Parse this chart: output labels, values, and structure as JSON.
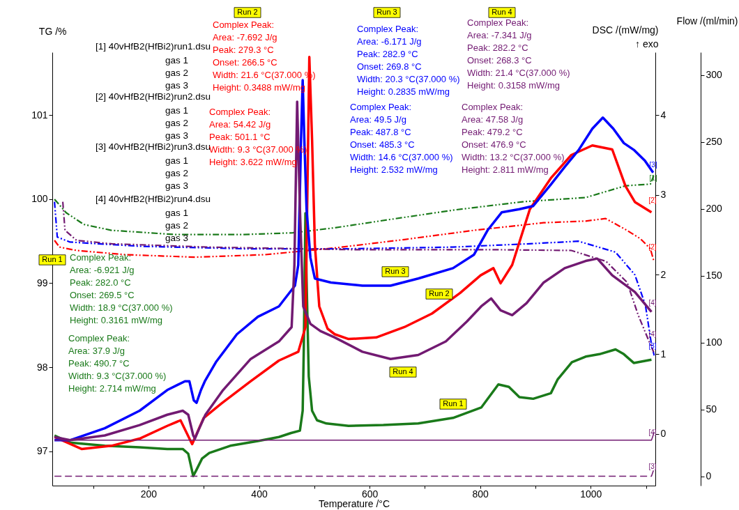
{
  "chart_data": {
    "type": "line",
    "xlabel": "Temperature /°C",
    "ylabel": "TG /%",
    "y2label": "DSC /(mW/mg)\n↑ exo",
    "y3label": "Flow /(ml/min)",
    "xlim": [
      26,
      1117
    ],
    "xticks": [
      {
        "value": 100,
        "label": null
      },
      200,
      {
        "value": 300,
        "label": null
      },
      400,
      {
        "value": 500,
        "label": null
      },
      600,
      {
        "value": 700,
        "label": null
      },
      800,
      {
        "value": 900,
        "label": null
      },
      1000,
      {
        "value": 1100,
        "label": null
      }
    ],
    "ylim": [
      96.59,
      101.75
    ],
    "yticks": [
      97,
      98,
      99,
      100,
      101
    ],
    "y2lim": [
      -0.65,
      4.79
    ],
    "y2ticks": [
      0,
      1,
      2,
      3,
      4
    ],
    "y3lim": [
      -7,
      317
    ],
    "y3ticks": [
      0,
      50,
      100,
      150,
      200,
      250,
      300
    ],
    "grid": false,
    "series": [
      {
        "axis": "y2",
        "color": "#1a7a1a",
        "line_style": "solid",
        "x": [
          30,
          58,
          121,
          184,
          234,
          262,
          272,
          281,
          287,
          297,
          310,
          348,
          398,
          436,
          458,
          474,
          479,
          481,
          484,
          486,
          490,
          496,
          505,
          522,
          562,
          625,
          688,
          751,
          802,
          833,
          852,
          871,
          896,
          928,
          940,
          966,
          991,
          1016,
          1045,
          1060,
          1078,
          1110
        ],
        "values": [
          -0.02,
          -0.11,
          -0.15,
          -0.17,
          -0.19,
          -0.19,
          -0.25,
          -0.53,
          -0.45,
          -0.31,
          -0.24,
          -0.15,
          -0.09,
          -0.04,
          0.01,
          0.04,
          0.29,
          1.07,
          2.77,
          1.95,
          0.72,
          0.29,
          0.17,
          0.13,
          0.1,
          0.11,
          0.13,
          0.2,
          0.33,
          0.62,
          0.59,
          0.46,
          0.44,
          0.51,
          0.68,
          0.9,
          0.97,
          1.0,
          1.06,
          1.0,
          0.89,
          0.93
        ]
      },
      {
        "axis": "y2",
        "color": "#ff0000",
        "line_style": "solid",
        "x": [
          30,
          79,
          133,
          184,
          234,
          258,
          279,
          300,
          332,
          385,
          436,
          471,
          484,
          491,
          496,
          501,
          509,
          524,
          537,
          562,
          612,
          663,
          713,
          764,
          801,
          824,
          837,
          858,
          890,
          928,
          965,
          1003,
          1039,
          1063,
          1080,
          1110
        ],
        "values": [
          -0.04,
          -0.19,
          -0.15,
          -0.06,
          0.1,
          0.17,
          -0.13,
          0.2,
          0.38,
          0.66,
          0.92,
          1.03,
          1.34,
          4.73,
          3.69,
          2.38,
          1.6,
          1.32,
          1.25,
          1.19,
          1.21,
          1.34,
          1.51,
          1.77,
          1.99,
          2.08,
          1.89,
          2.12,
          2.82,
          3.21,
          3.5,
          3.62,
          3.57,
          3.11,
          2.91,
          2.78
        ]
      },
      {
        "axis": "y2",
        "color": "#0000ff",
        "line_style": "solid",
        "x": [
          30,
          58,
          121,
          184,
          234,
          266,
          274,
          282,
          287,
          295,
          302,
          322,
          360,
          398,
          436,
          465,
          471,
          476,
          479,
          482,
          486,
          493,
          501,
          530,
          587,
          638,
          688,
          751,
          789,
          814,
          839,
          871,
          896,
          928,
          953,
          978,
          1003,
          1022,
          1041,
          1060,
          1079,
          1098,
          1113
        ],
        "values": [
          -0.08,
          -0.08,
          0.07,
          0.29,
          0.55,
          0.66,
          0.66,
          0.42,
          0.39,
          0.55,
          0.66,
          0.9,
          1.25,
          1.47,
          1.6,
          1.86,
          2.12,
          3.69,
          4.44,
          3.69,
          2.82,
          2.21,
          1.95,
          1.9,
          1.86,
          1.86,
          1.95,
          2.08,
          2.25,
          2.56,
          2.78,
          2.82,
          2.86,
          3.13,
          3.35,
          3.56,
          3.83,
          3.97,
          3.83,
          3.65,
          3.56,
          3.43,
          3.28
        ]
      },
      {
        "axis": "y2",
        "color": "#721a72",
        "line_style": "solid",
        "x": [
          30,
          58,
          121,
          184,
          234,
          262,
          272,
          281,
          284,
          292,
          303,
          335,
          385,
          436,
          459,
          464,
          469,
          474,
          480,
          493,
          511,
          537,
          587,
          638,
          688,
          738,
          776,
          802,
          820,
          837,
          858,
          884,
          915,
          953,
          991,
          1012,
          1039,
          1080,
          1110
        ],
        "values": [
          -0.04,
          -0.08,
          -0.02,
          0.11,
          0.24,
          0.29,
          0.24,
          -0.02,
          -0.06,
          0.07,
          0.24,
          0.55,
          0.94,
          1.16,
          1.34,
          2.12,
          4.17,
          2.82,
          1.6,
          1.38,
          1.29,
          1.21,
          1.03,
          0.94,
          0.99,
          1.16,
          1.41,
          1.6,
          1.7,
          1.55,
          1.49,
          1.64,
          1.9,
          2.08,
          2.17,
          2.2,
          1.99,
          1.78,
          1.53
        ]
      },
      {
        "axis": "y",
        "color": "#1a7a1a",
        "line_style": "dashdot",
        "x": [
          30,
          51,
          83,
          133,
          247,
          373,
          461,
          537,
          638,
          751,
          877,
          991,
          1063,
          1108,
          1114
        ],
        "values": [
          100.0,
          99.84,
          99.7,
          99.63,
          99.58,
          99.58,
          99.6,
          99.66,
          99.76,
          99.87,
          99.97,
          100.02,
          100.16,
          100.18,
          100.28
        ]
      },
      {
        "axis": "y",
        "color": "#ff0000",
        "line_style": "dashdot",
        "x": [
          30,
          39,
          70,
          158,
          284,
          411,
          537,
          663,
          789,
          915,
          991,
          1027,
          1063,
          1090,
          1108,
          1114
        ],
        "values": [
          99.51,
          99.43,
          99.39,
          99.34,
          99.31,
          99.34,
          99.42,
          99.52,
          99.63,
          99.72,
          99.74,
          99.77,
          99.64,
          99.53,
          99.41,
          99.27
        ]
      },
      {
        "axis": "y",
        "color": "#0000ff",
        "line_style": "dashdot",
        "x": [
          30,
          35,
          58,
          184,
          373,
          562,
          751,
          890,
          978,
          1045,
          1080,
          1099,
          1110,
          1115
        ],
        "values": [
          99.97,
          99.55,
          99.49,
          99.44,
          99.41,
          99.41,
          99.43,
          99.47,
          99.5,
          99.37,
          99.1,
          98.74,
          98.27,
          98.14
        ]
      },
      {
        "axis": "y",
        "color": "#721a72",
        "line_style": "dashdot",
        "x": [
          45,
          49,
          70,
          133,
          310,
          562,
          814,
          965,
          1028,
          1066,
          1086,
          1108,
          1114
        ],
        "values": [
          99.97,
          99.63,
          99.51,
          99.47,
          99.43,
          99.4,
          99.4,
          99.39,
          99.26,
          99.01,
          98.62,
          98.27,
          98.18
        ]
      },
      {
        "axis": "y3",
        "color": "#721a72",
        "line_style": "solid",
        "x": [
          30,
          1110,
          1115
        ],
        "values": [
          27,
          27,
          33
        ]
      },
      {
        "axis": "y3",
        "color": "#721a72",
        "line_style": "dashed",
        "x": [
          30,
          1110,
          1115
        ],
        "values": [
          0,
          0,
          6
        ]
      }
    ],
    "annotations": [
      "[1] 40vHfB2(HfBi2)run1.dsu",
      "gas 1\ngas 2\ngas 3",
      "[2] 40vHfB2(HfBi2)run2.dsu",
      "gas 1\ngas 2\ngas 3",
      "[3] 40vHfB2(HfBi2)run3.dsu",
      "gas 1\ngas 2\ngas 3",
      "[4] 40vHfB2(HfBi2)run4.dsu",
      "gas 1\ngas 2\ngas 3",
      "Complex Peak:\nArea: -6.921 J/g\nPeak: 282.0 °C\nOnset: 269.5 °C\nWidth: 18.9 °C(37.000 %)\nHeight: 0.3161 mW/mg",
      "Complex Peak:\nArea: 37.9 J/g\nPeak: 490.7 °C\nWidth: 9.3 °C(37.000 %)\nHeight: 2.714 mW/mg",
      "Complex Peak:\nArea: -7.692 J/g\nPeak: 279.3 °C\nOnset: 266.5 °C\nWidth: 21.6 °C(37.000 %)\nHeight: 0.3488 mW/mg",
      "Complex Peak:\nArea: 54.42 J/g\nPeak: 501.1 °C\nWidth: 9.3 °C(37.000 %)\nHeight: 3.622 mW/mg",
      "Complex Peak:\nArea: -6.171 J/g\nPeak: 282.9 °C\nOnset: 269.8 °C\nWidth: 20.3 °C(37.000 %)\nHeight: 0.2835 mW/mg",
      "Complex Peak:\nArea: 49.5 J/g\nPeak: 487.8 °C\nOnset: 485.3 °C\nWidth: 14.6 °C(37.000 %)\nHeight: 2.532 mW/mg",
      "Complex Peak:\nArea: -7.341 J/g\nPeak: 282.2 °C\nOnset: 268.3 °C\nWidth: 21.4 °C(37.000 %)\nHeight: 0.3158 mW/mg",
      "Complex Peak:\nArea: 47.58 J/g\nPeak: 479.2 °C\nOnset: 476.9 °C\nWidth: 13.2 °C(37.000 %)\nHeight: 2.811 mW/mg",
      "Run 1",
      "Run 2",
      "Run 3",
      "Run 4",
      "Run 3",
      "Run 2",
      "Run 4",
      "Run 1",
      "[3]",
      "[1]",
      "[2]",
      "[2]",
      "[4]",
      "[4]",
      "[3]",
      "[4]",
      "[3]"
    ]
  }
}
